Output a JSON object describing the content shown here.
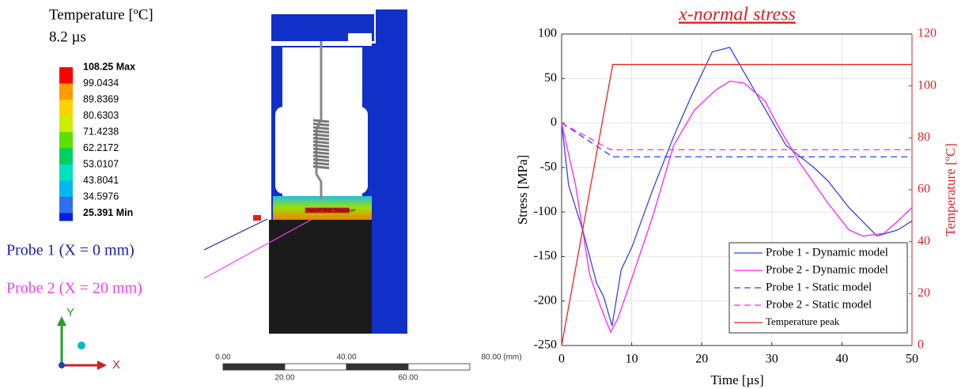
{
  "contour": {
    "title": "Temperature [ºC]",
    "time": "8.2 µs",
    "levels": [
      "108.25 Max",
      "99.0434",
      "89.8369",
      "80.6303",
      "71.4238",
      "62.2172",
      "53.0107",
      "43.8041",
      "34.5976",
      "25.391 Min"
    ]
  },
  "annotation": "Imposed Body Temperature",
  "probes": [
    {
      "label": "Probe 1 (X = 0 mm)",
      "color": "#1f1fa8"
    },
    {
      "label": "Probe 2 (X = 20 mm)",
      "color": "#f040f0"
    }
  ],
  "scale_bar": {
    "labels": [
      "0.00",
      "20.00",
      "40.00",
      "60.00",
      "80.00 (mm)"
    ]
  },
  "triad": {
    "x": "X",
    "y": "Y"
  },
  "chart_data": {
    "type": "line",
    "title": "x-normal stress",
    "xlabel": "Time [µs]",
    "ylabel": "Stress [MPa]",
    "y2label": "Temperature [ºC]",
    "xlim": [
      0,
      50
    ],
    "xticks": [
      0,
      10,
      20,
      30,
      40,
      50
    ],
    "ylim": [
      -250,
      100
    ],
    "yticks": [
      -250,
      -200,
      -150,
      -100,
      -50,
      0,
      50,
      100
    ],
    "y2lim": [
      0,
      120
    ],
    "y2ticks": [
      0,
      20,
      40,
      60,
      80,
      100,
      120
    ],
    "grid": true,
    "legend": "lower right",
    "series": [
      {
        "name": "Probe 1 - Dynamic model",
        "color": "#3344ee",
        "linestyle": "solid",
        "x": [
          0,
          1,
          3,
          5,
          6,
          7.2,
          8.5,
          10,
          13,
          16,
          18.5,
          21.5,
          24,
          28,
          32,
          36,
          38,
          41,
          45,
          48,
          50
        ],
        "values": [
          0,
          -70,
          -120,
          -180,
          -195,
          -228,
          -165,
          -140,
          -75,
          -15,
          30,
          80,
          85,
          30,
          -25,
          -50,
          -65,
          -95,
          -127,
          -120,
          -110
        ]
      },
      {
        "name": "Probe 2 - Dynamic model",
        "color": "#ff22ff",
        "linestyle": "solid",
        "x": [
          0,
          2,
          4,
          5.5,
          7,
          8,
          10,
          13,
          16,
          19,
          22,
          24,
          26,
          29,
          31,
          34,
          38,
          41,
          43,
          46,
          48,
          50
        ],
        "values": [
          0,
          -70,
          -170,
          -205,
          -235,
          -220,
          -175,
          -105,
          -25,
          15,
          37,
          47,
          45,
          25,
          -5,
          -45,
          -90,
          -120,
          -127,
          -124,
          -110,
          -95
        ]
      },
      {
        "name": "Probe 1 - Static model",
        "color": "#3344ee",
        "linestyle": "dashed",
        "x": [
          0,
          7.3,
          50
        ],
        "values": [
          0,
          -38,
          -38
        ]
      },
      {
        "name": "Probe 2 - Static model",
        "color": "#ff22ff",
        "linestyle": "dashed",
        "x": [
          0,
          7,
          50
        ],
        "values": [
          0,
          -30,
          -30
        ]
      },
      {
        "name": "Temperature peak",
        "color": "#ee2222",
        "linestyle": "solid",
        "axis": "y2",
        "x": [
          0,
          7.3,
          50
        ],
        "values": [
          0,
          108.25,
          108.25
        ]
      }
    ]
  }
}
